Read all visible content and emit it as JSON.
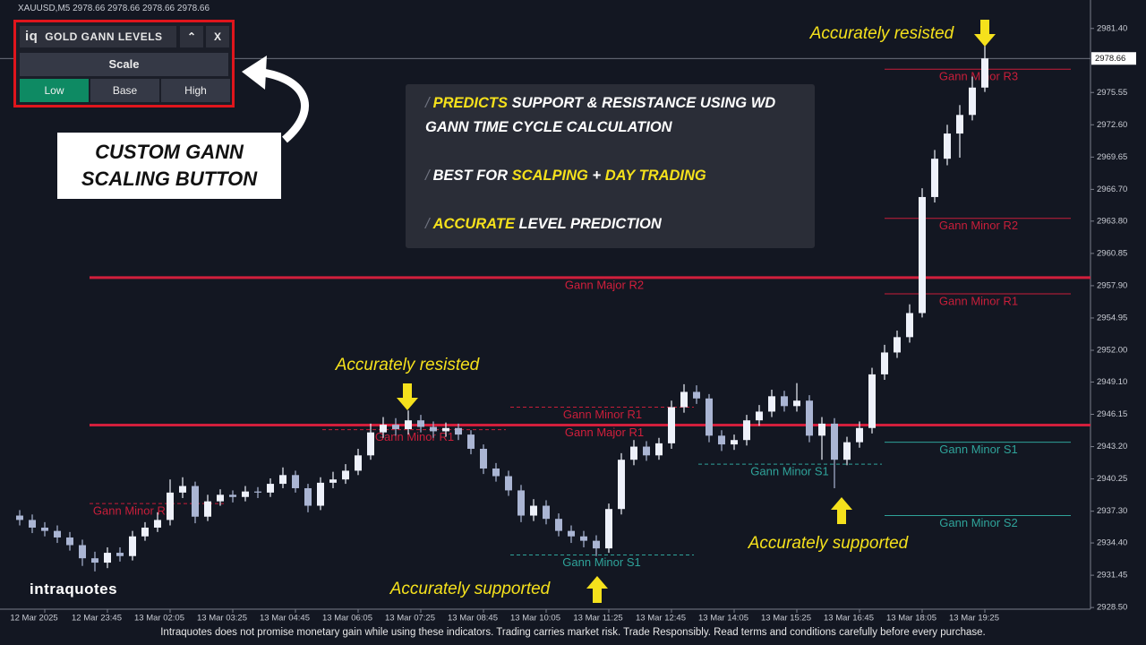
{
  "chart_data": {
    "type": "candlestick",
    "symbol_info": "XAUUSD,M5  2978.66 2978.66 2978.66 2978.66",
    "up_color": "#eef1fa",
    "down_color": "#aab5d3",
    "categories": [
      null,
      null,
      "12 Mar 2025",
      null,
      null,
      null,
      null,
      "12 Mar 23:45",
      null,
      null,
      null,
      null,
      "13 Mar 02:05",
      null,
      null,
      null,
      null,
      "13 Mar 03:25",
      null,
      null,
      null,
      null,
      "13 Mar 04:45",
      null,
      null,
      null,
      null,
      "13 Mar 06:05",
      null,
      null,
      null,
      null,
      "13 Mar 07:25",
      null,
      null,
      null,
      null,
      "13 Mar 08:45",
      null,
      null,
      null,
      null,
      "13 Mar 10:05",
      null,
      null,
      null,
      null,
      "13 Mar 11:25",
      null,
      null,
      null,
      null,
      "13 Mar 12:45",
      null,
      null,
      null,
      null,
      "13 Mar 14:05",
      null,
      null,
      null,
      null,
      "13 Mar 15:25",
      null,
      null,
      null,
      null,
      "13 Mar 16:45",
      null,
      null,
      null,
      null,
      "13 Mar 18:05",
      null,
      null,
      null,
      null,
      "13 Mar 19:25"
    ],
    "open": [
      2936.9,
      2936.5,
      2935.8,
      2935.5,
      2934.9,
      2934.2,
      2933.0,
      2932.6,
      2933.5,
      2933.2,
      2935.0,
      2935.8,
      2936.5,
      2939.0,
      2939.6,
      2936.8,
      2938.2,
      2938.8,
      2938.6,
      2939.1,
      2939.0,
      2939.8,
      2940.6,
      2939.4,
      2937.8,
      2939.9,
      2940.2,
      2941.0,
      2942.4,
      2944.5,
      2945.2,
      2944.8,
      2945.6,
      2945.0,
      2944.6,
      2944.9,
      2944.3,
      2943.0,
      2941.2,
      2940.5,
      2939.2,
      2936.9,
      2937.8,
      2936.6,
      2935.5,
      2935.0,
      2934.6,
      2933.9,
      2937.5,
      2942.0,
      2943.2,
      2942.4,
      2943.5,
      2946.8,
      2948.2,
      2947.6,
      2944.2,
      2943.4,
      2943.8,
      2945.6,
      2946.4,
      2947.8,
      2946.9,
      2947.4,
      2944.2,
      2945.3,
      2942.0,
      2943.6,
      2944.9,
      2949.8,
      2951.8,
      2953.2,
      2955.4,
      2966.0,
      2969.5,
      2971.8,
      2973.5,
      2976.0
    ],
    "high": [
      2937.4,
      2937.0,
      2936.3,
      2936.0,
      2935.4,
      2934.7,
      2933.6,
      2934.0,
      2934.0,
      2935.5,
      2936.3,
      2937.2,
      2940.2,
      2940.4,
      2940.0,
      2938.8,
      2939.3,
      2939.2,
      2939.6,
      2939.5,
      2940.3,
      2941.3,
      2941.0,
      2939.8,
      2940.4,
      2940.9,
      2941.6,
      2943.0,
      2945.3,
      2945.9,
      2945.8,
      2946.5,
      2946.1,
      2945.5,
      2945.4,
      2945.3,
      2944.7,
      2943.4,
      2941.7,
      2941.0,
      2939.7,
      2938.4,
      2938.3,
      2937.1,
      2936.0,
      2935.5,
      2935.1,
      2938.0,
      2942.6,
      2943.8,
      2943.7,
      2944.0,
      2947.4,
      2948.9,
      2948.8,
      2948.0,
      2944.7,
      2944.3,
      2946.1,
      2947.0,
      2948.4,
      2948.3,
      2949.0,
      2947.9,
      2945.9,
      2945.8,
      2944.1,
      2945.5,
      2950.4,
      2952.5,
      2953.8,
      2956.2,
      2966.8,
      2970.3,
      2972.6,
      2974.4,
      2977.0,
      2980.2
    ],
    "low": [
      2936.0,
      2935.3,
      2935.0,
      2934.4,
      2933.7,
      2932.3,
      2931.8,
      2932.1,
      2932.7,
      2932.8,
      2934.6,
      2935.4,
      2936.0,
      2938.5,
      2936.2,
      2936.4,
      2937.8,
      2938.1,
      2938.2,
      2938.5,
      2938.6,
      2939.4,
      2939.0,
      2937.2,
      2937.4,
      2939.4,
      2939.8,
      2940.6,
      2942.0,
      2944.0,
      2944.2,
      2944.3,
      2944.5,
      2944.0,
      2944.1,
      2943.8,
      2942.5,
      2940.7,
      2940.0,
      2938.7,
      2936.3,
      2936.4,
      2936.1,
      2935.0,
      2934.4,
      2934.0,
      2933.2,
      2933.5,
      2937.0,
      2941.5,
      2941.9,
      2942.0,
      2943.0,
      2946.3,
      2947.1,
      2943.6,
      2942.8,
      2942.9,
      2943.3,
      2945.1,
      2945.9,
      2946.4,
      2946.4,
      2943.6,
      2942.0,
      2939.4,
      2941.5,
      2943.1,
      2944.4,
      2949.3,
      2951.3,
      2952.7,
      2955.0,
      2965.5,
      2968.9,
      2969.6,
      2973.0,
      2975.6
    ],
    "close": [
      2936.5,
      2935.8,
      2935.5,
      2934.9,
      2934.2,
      2933.0,
      2932.6,
      2933.5,
      2933.2,
      2935.0,
      2935.8,
      2936.5,
      2939.0,
      2939.6,
      2936.8,
      2938.2,
      2938.8,
      2938.6,
      2939.1,
      2939.0,
      2939.8,
      2940.6,
      2939.4,
      2937.8,
      2939.9,
      2940.2,
      2941.0,
      2942.4,
      2944.5,
      2945.2,
      2944.8,
      2945.6,
      2945.0,
      2944.6,
      2944.9,
      2944.3,
      2943.0,
      2941.2,
      2940.5,
      2939.2,
      2936.9,
      2937.8,
      2936.6,
      2935.5,
      2935.0,
      2934.6,
      2933.9,
      2937.5,
      2942.0,
      2943.2,
      2942.4,
      2943.5,
      2946.8,
      2948.2,
      2947.6,
      2944.2,
      2943.4,
      2943.8,
      2945.6,
      2946.4,
      2947.8,
      2946.9,
      2947.4,
      2944.2,
      2945.3,
      2942.0,
      2943.6,
      2944.9,
      2949.8,
      2951.8,
      2953.2,
      2955.4,
      2966.0,
      2969.5,
      2971.8,
      2973.5,
      2976.0,
      2978.66
    ],
    "last_price": 2978.66,
    "ylim": [
      2928.35,
      2984.0
    ],
    "yticks": [
      {
        "value": 2928.5,
        "label": "2928.50"
      },
      2931.45,
      {
        "value": 2934.4,
        "label": "2934.40"
      },
      {
        "value": 2937.3,
        "label": "2937.30"
      },
      2940.25,
      {
        "value": 2943.2,
        "label": "2943.20"
      },
      2946.15,
      {
        "value": 2949.1,
        "label": "2949.10"
      },
      {
        "value": 2952,
        "label": "2952.00"
      },
      2954.95,
      {
        "value": 2957.9,
        "label": "2957.90"
      },
      2960.85,
      {
        "value": 2963.8,
        "label": "2963.80"
      },
      {
        "value": 2966.7,
        "label": "2966.70"
      },
      2969.65,
      {
        "value": 2972.6,
        "label": "2972.60"
      },
      2975.55,
      {
        "value": 2981.4,
        "label": "2981.40"
      }
    ],
    "levels": [
      {
        "name": "Gann Major R2",
        "value": 2958.64,
        "color": "#d21f3c",
        "dashed": false,
        "major": true
      },
      {
        "name": "Gann Major R1",
        "value": 2945.17,
        "color": "#d21f3c",
        "dashed": false,
        "major": true
      },
      {
        "name": "Gann Minor R3",
        "value": 2977.68,
        "color": "#c81e3a",
        "dashed": false,
        "major": false
      },
      {
        "name": "Gann Minor R2",
        "value": 2964.05,
        "color": "#c81e3a",
        "dashed": false,
        "major": false
      },
      {
        "name": "Gann Minor R1",
        "value": 2957.16,
        "color": "#c81e3a",
        "dashed": false,
        "major": false
      },
      {
        "name": "Gann Minor S1",
        "value": 2943.6,
        "color": "#2fa39a",
        "dashed": false,
        "major": false
      },
      {
        "name": "Gann Minor S2",
        "value": 2936.9,
        "color": "#2fa39a",
        "dashed": false,
        "major": false
      },
      {
        "name": "Gann Minor R1",
        "value": 2938.0,
        "color": "#c81e3a",
        "dashed": true,
        "major": false
      },
      {
        "name": "Gann Minor R1",
        "value": 2944.75,
        "color": "#c81e3a",
        "dashed": true,
        "major": false
      },
      {
        "name": "Gann Minor R1",
        "value": 2946.8,
        "color": "#c81e3a",
        "dashed": true,
        "major": false
      },
      {
        "name": "Gann Minor S1",
        "value": 2933.3,
        "color": "#2fa39a",
        "dashed": true,
        "major": false
      },
      {
        "name": "Gann Minor S1",
        "value": 2941.6,
        "color": "#2fa39a",
        "dashed": true,
        "major": false
      }
    ]
  },
  "panel": {
    "logo": "iq",
    "title": "GOLD GANN LEVELS",
    "close": "X",
    "scale": "Scale",
    "buttons": [
      "Low",
      "Base",
      "High"
    ]
  },
  "callout": "CUSTOM GANN SCALING BUTTON",
  "info_box": {
    "marker": "/",
    "bullets": [
      [
        {
          "text": "PREDICTS",
          "highlight": true
        },
        {
          "text": " SUPPORT & RESISTANCE USING WD GANN TIME CYCLE CALCULATION",
          "highlight": false
        }
      ],
      [
        {
          "text": "BEST FOR ",
          "highlight": false
        },
        {
          "text": "SCALPING",
          "highlight": true
        },
        {
          "text": " + ",
          "highlight": false
        },
        {
          "text": "DAY TRADING",
          "highlight": true
        }
      ],
      [
        {
          "text": "ACCURATE",
          "highlight": true
        },
        {
          "text": " LEVEL PREDICTION",
          "highlight": false
        }
      ]
    ]
  },
  "annotations": [
    "Accurately resisted",
    "Accurately resisted",
    "Accurately supported",
    "Accurately supported"
  ],
  "brand": "intraquotes",
  "disclaimer": "Intraquotes does not promise monetary gain while using these indicators. Trading carries market risk. Trade Responsibly. Read terms and conditions carefully before every purchase."
}
